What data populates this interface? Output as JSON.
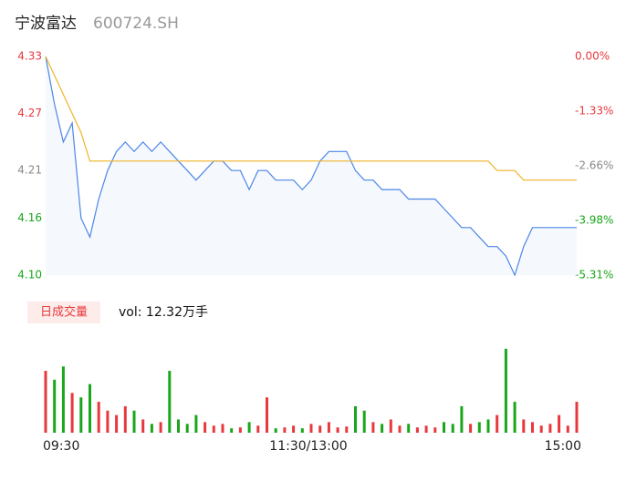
{
  "chart_data": {
    "type": "line",
    "title": "宁波富达",
    "subtitle": "600724.SH",
    "volume_title": "日成交量",
    "volume_text": "vol: 12.32万手",
    "xlim": [
      0,
      240
    ],
    "xticks": [
      {
        "value": 0,
        "label": "09:30"
      },
      {
        "value": 120,
        "label": "11:30/13:00"
      },
      {
        "value": 240,
        "label": "15:00"
      }
    ],
    "ylim": [
      4.1,
      4.33
    ],
    "yticks": [
      4.33,
      4.27,
      4.21,
      4.16,
      {
        "value": 4.1,
        "label": "4.10"
      }
    ],
    "y2lim": [
      -5.31,
      0
    ],
    "y2ticks": [
      {
        "value": 0,
        "label": "0.00%"
      },
      {
        "value": -1.33,
        "label": "-1.33%"
      },
      {
        "value": -2.66,
        "label": "-2.66%"
      },
      {
        "value": -3.98,
        "label": "-3.98%"
      },
      {
        "value": -5.31,
        "label": "-5.31%"
      }
    ],
    "x": [
      0,
      4,
      8,
      12,
      16,
      20,
      24,
      28,
      32,
      36,
      40,
      44,
      48,
      52,
      56,
      60,
      64,
      68,
      72,
      76,
      80,
      84,
      88,
      92,
      96,
      100,
      104,
      108,
      112,
      116,
      120,
      124,
      128,
      132,
      136,
      140,
      144,
      148,
      152,
      156,
      160,
      164,
      168,
      172,
      176,
      180,
      184,
      188,
      192,
      196,
      200,
      204,
      208,
      212,
      216,
      220,
      224,
      228,
      232,
      236,
      240
    ],
    "series": [
      {
        "color": "#4a86e8",
        "values": [
          4.33,
          4.28,
          4.24,
          4.26,
          4.16,
          4.14,
          4.18,
          4.21,
          4.23,
          4.24,
          4.23,
          4.24,
          4.23,
          4.24,
          4.23,
          4.22,
          4.21,
          4.2,
          4.21,
          4.22,
          4.22,
          4.21,
          4.21,
          4.19,
          4.21,
          4.21,
          4.2,
          4.2,
          4.2,
          4.19,
          4.2,
          4.22,
          4.23,
          4.23,
          4.23,
          4.21,
          4.2,
          4.2,
          4.19,
          4.19,
          4.19,
          4.18,
          4.18,
          4.18,
          4.18,
          4.17,
          4.16,
          4.15,
          4.15,
          4.14,
          4.13,
          4.13,
          4.12,
          4.1,
          4.13,
          4.15,
          4.15,
          4.15,
          4.15,
          4.15,
          4.15
        ]
      },
      {
        "color": "#f0b429",
        "values": [
          4.33,
          4.31,
          4.29,
          4.27,
          4.25,
          4.22,
          4.22,
          4.22,
          4.22,
          4.22,
          4.22,
          4.22,
          4.22,
          4.22,
          4.22,
          4.22,
          4.22,
          4.22,
          4.22,
          4.22,
          4.22,
          4.22,
          4.22,
          4.22,
          4.22,
          4.22,
          4.22,
          4.22,
          4.22,
          4.22,
          4.22,
          4.22,
          4.22,
          4.22,
          4.22,
          4.22,
          4.22,
          4.22,
          4.22,
          4.22,
          4.22,
          4.22,
          4.22,
          4.22,
          4.22,
          4.22,
          4.22,
          4.22,
          4.22,
          4.22,
          4.22,
          4.21,
          4.21,
          4.21,
          4.2,
          4.2,
          4.2,
          4.2,
          4.2,
          4.2,
          4.2
        ]
      }
    ],
    "volume": [
      70,
      60,
      75,
      45,
      40,
      55,
      35,
      25,
      20,
      30,
      25,
      15,
      10,
      12,
      70,
      15,
      10,
      20,
      12,
      8,
      10,
      5,
      6,
      12,
      8,
      40,
      5,
      6,
      8,
      5,
      10,
      8,
      12,
      6,
      7,
      30,
      25,
      12,
      10,
      15,
      8,
      10,
      6,
      8,
      6,
      12,
      10,
      30,
      10,
      12,
      15,
      20,
      95,
      35,
      15,
      12,
      8,
      10,
      20,
      8,
      35
    ],
    "volume_ylim": [
      0,
      100
    ],
    "up_color": "#e8383d",
    "down_color": "#1aa61a"
  }
}
